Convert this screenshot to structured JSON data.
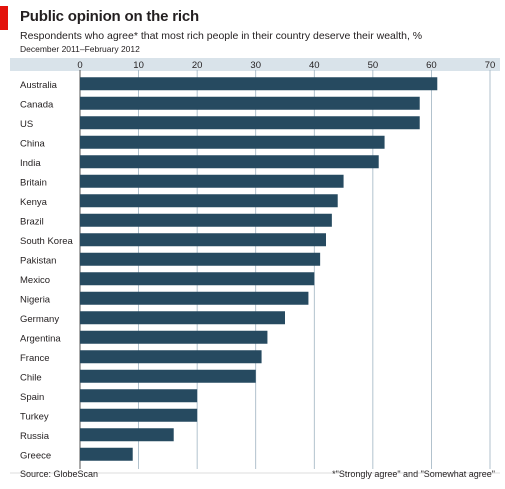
{
  "header": {
    "title": "Public opinion on the rich",
    "subtitle": "Respondents who agree* that most rich people in their country deserve their wealth, %",
    "date_range": "December 2011–February 2012"
  },
  "footer": {
    "source": "Source: GlobeScan",
    "footnote": "*\"Strongly agree\" and \"Somewhat agree\""
  },
  "colors": {
    "bar": "#264a60",
    "accent": "#e3120b",
    "grid": "#9fb3c1",
    "band": "#d9e3ea"
  },
  "chart_data": {
    "type": "bar",
    "orientation": "horizontal",
    "title": "Public opinion on the rich",
    "subtitle": "Respondents who agree* that most rich people in their country deserve their wealth, %",
    "xlim": [
      0,
      70
    ],
    "xticks": [
      0,
      10,
      20,
      30,
      40,
      50,
      60,
      70
    ],
    "x_axis_position": "top",
    "grid": true,
    "categories": [
      "Australia",
      "Canada",
      "US",
      "China",
      "India",
      "Britain",
      "Kenya",
      "Brazil",
      "South Korea",
      "Pakistan",
      "Mexico",
      "Nigeria",
      "Germany",
      "Argentina",
      "France",
      "Chile",
      "Spain",
      "Turkey",
      "Russia",
      "Greece"
    ],
    "values": [
      61,
      58,
      58,
      52,
      51,
      45,
      44,
      43,
      42,
      41,
      40,
      39,
      35,
      32,
      31,
      30,
      20,
      20,
      16,
      9
    ]
  }
}
